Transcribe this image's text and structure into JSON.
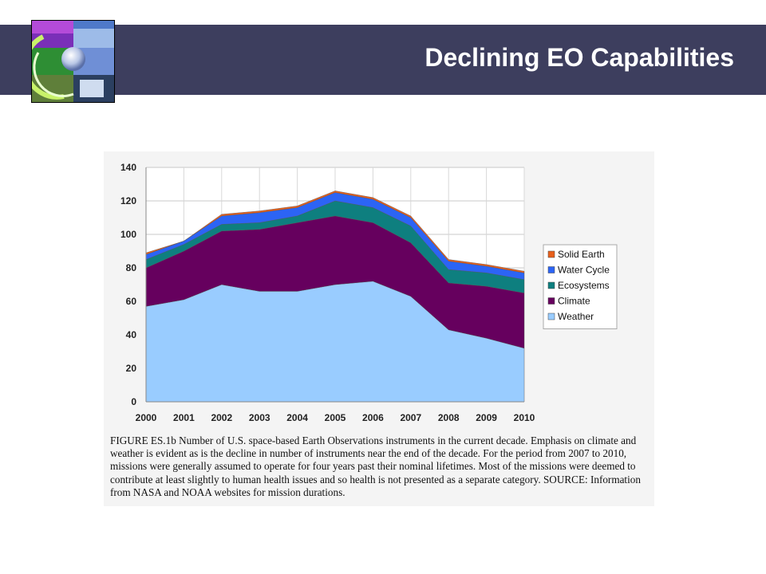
{
  "slide": {
    "title": "Declining EO Capabilities",
    "logo_icon": "earth-observation-logo-icon",
    "header_color": "#3d3e5e"
  },
  "chart_data": {
    "type": "area",
    "stacked": true,
    "title": "",
    "xlabel": "",
    "ylabel": "",
    "x": [
      "2000",
      "2001",
      "2002",
      "2003",
      "2004",
      "2005",
      "2006",
      "2007",
      "2008",
      "2009",
      "2010"
    ],
    "ylim": [
      0,
      140
    ],
    "yticks": [
      0,
      20,
      40,
      60,
      80,
      100,
      120,
      140
    ],
    "grid": true,
    "legend_position": "right",
    "series": [
      {
        "name": "Weather",
        "color": "#99ccff",
        "values": [
          57,
          61,
          70,
          66,
          66,
          70,
          72,
          63,
          43,
          38,
          32
        ]
      },
      {
        "name": "Climate",
        "color": "#66005e",
        "values": [
          23,
          29,
          32,
          37,
          41,
          41,
          35,
          32,
          28,
          31,
          33
        ]
      },
      {
        "name": "Ecosystems",
        "color": "#0e7f7f",
        "values": [
          5,
          4,
          4,
          4,
          4,
          9,
          9,
          10,
          8,
          8,
          8
        ]
      },
      {
        "name": "Water Cycle",
        "color": "#2c64f5",
        "values": [
          3,
          2,
          5,
          6,
          5,
          5,
          5,
          5,
          5,
          4,
          4
        ]
      },
      {
        "name": "Solid Earth",
        "color": "#e8601c",
        "values": [
          1,
          0,
          1,
          1,
          1,
          1,
          1,
          1,
          1,
          1,
          1
        ]
      }
    ]
  },
  "caption": "FIGURE ES.1b  Number of U.S. space-based Earth Observations instruments in the current decade.  Emphasis on climate and weather is evident as is the decline in number of instruments near the end of the decade.  For the period from 2007 to 2010, missions were generally assumed to operate for four years past their nominal lifetimes.  Most of the missions were deemed to contribute at least slightly to human health issues and so health is not presented as a separate category. SOURCE: Information from NASA and NOAA websites for mission durations."
}
